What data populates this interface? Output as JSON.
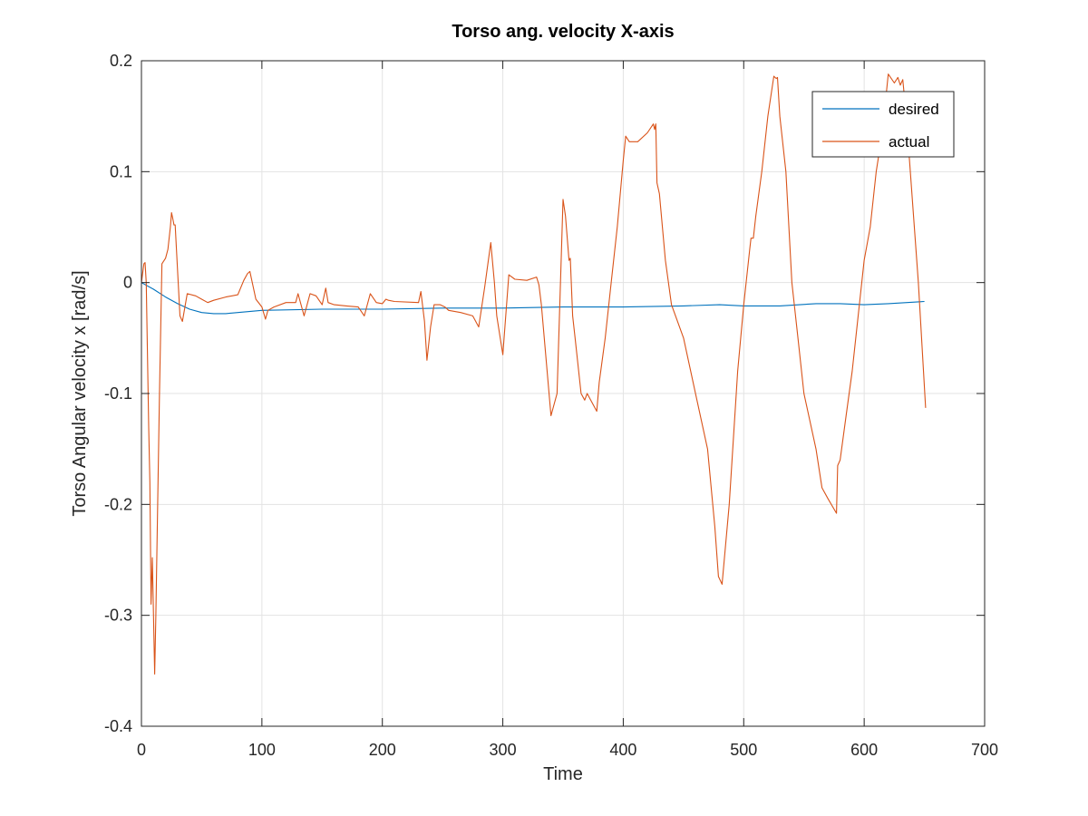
{
  "chart_data": {
    "type": "line",
    "title": "Torso ang. velocity X-axis",
    "xlabel": "Time",
    "ylabel": "Torso Angular velocity x [rad/s]",
    "xlim": [
      0,
      700
    ],
    "ylim": [
      -0.4,
      0.2
    ],
    "xticks": [
      0,
      100,
      200,
      300,
      400,
      500,
      600,
      700
    ],
    "yticks": [
      0.2,
      0.1,
      0,
      -0.1,
      -0.2,
      -0.3,
      -0.4
    ],
    "xtick_labels": [
      "0",
      "100",
      "200",
      "300",
      "400",
      "500",
      "600",
      "700"
    ],
    "ytick_labels": [
      "0.2",
      "0.1",
      "0",
      "-0.1",
      "-0.2",
      "-0.3",
      "-0.4"
    ],
    "grid": true,
    "legend_position": "top-right",
    "series": [
      {
        "name": "desired",
        "color": "#0072BD",
        "x": [
          0,
          10,
          20,
          30,
          40,
          50,
          60,
          70,
          80,
          100,
          150,
          200,
          250,
          300,
          350,
          400,
          450,
          480,
          500,
          530,
          560,
          580,
          600,
          620,
          650
        ],
        "y": [
          0,
          -0.006,
          -0.013,
          -0.019,
          -0.024,
          -0.027,
          -0.028,
          -0.028,
          -0.027,
          -0.025,
          -0.024,
          -0.024,
          -0.023,
          -0.023,
          -0.022,
          -0.022,
          -0.021,
          -0.02,
          -0.021,
          -0.021,
          -0.019,
          -0.019,
          -0.02,
          -0.019,
          -0.017
        ]
      },
      {
        "name": "actual",
        "color": "#D95319",
        "x": [
          0,
          2,
          3,
          4,
          6,
          7,
          8,
          9,
          10,
          11,
          12,
          15,
          17,
          20,
          22,
          24,
          25,
          26,
          27,
          28,
          30,
          32,
          34,
          38,
          45,
          50,
          55,
          60,
          70,
          80,
          85,
          88,
          90,
          95,
          100,
          103,
          105,
          110,
          120,
          128,
          130,
          135,
          140,
          145,
          150,
          153,
          155,
          160,
          170,
          180,
          185,
          190,
          195,
          200,
          203,
          205,
          210,
          230,
          232,
          235,
          237,
          240,
          243,
          248,
          252,
          255,
          265,
          275,
          280,
          285,
          290,
          293,
          295,
          300,
          305,
          310,
          320,
          328,
          330,
          332,
          340,
          345,
          350,
          352,
          355,
          356,
          358,
          360,
          365,
          368,
          370,
          375,
          378,
          380,
          385,
          390,
          395,
          400,
          402,
          405,
          412,
          420,
          425,
          426,
          427,
          428,
          430,
          435,
          440,
          450,
          460,
          470,
          476,
          479,
          482,
          488,
          495,
          500,
          505,
          506,
          508,
          510,
          515,
          520,
          525,
          527,
          528,
          530,
          535,
          540,
          545,
          550,
          560,
          565,
          570,
          577,
          578,
          580,
          585,
          590,
          595,
          600,
          605,
          610,
          615,
          620,
          625,
          628,
          630,
          632,
          635,
          645,
          651
        ],
        "y": [
          0,
          0.017,
          0.018,
          0.0,
          -0.13,
          -0.18,
          -0.29,
          -0.248,
          -0.3,
          -0.353,
          -0.3,
          -0.1,
          0.017,
          0.022,
          0.03,
          0.05,
          0.063,
          0.058,
          0.052,
          0.052,
          0.01,
          -0.03,
          -0.035,
          -0.01,
          -0.012,
          -0.015,
          -0.018,
          -0.016,
          -0.013,
          -0.011,
          0.002,
          0.008,
          0.01,
          -0.015,
          -0.022,
          -0.033,
          -0.025,
          -0.022,
          -0.018,
          -0.018,
          -0.01,
          -0.03,
          -0.01,
          -0.012,
          -0.02,
          -0.005,
          -0.018,
          -0.02,
          -0.021,
          -0.022,
          -0.03,
          -0.01,
          -0.018,
          -0.019,
          -0.015,
          -0.016,
          -0.017,
          -0.018,
          -0.008,
          -0.035,
          -0.07,
          -0.04,
          -0.02,
          -0.02,
          -0.022,
          -0.025,
          -0.027,
          -0.03,
          -0.04,
          -0.004,
          0.036,
          0.0,
          -0.03,
          -0.065,
          0.007,
          0.003,
          0.002,
          0.005,
          -0.002,
          -0.02,
          -0.12,
          -0.1,
          0.075,
          0.06,
          0.02,
          0.022,
          -0.03,
          -0.05,
          -0.1,
          -0.106,
          -0.1,
          -0.11,
          -0.116,
          -0.09,
          -0.05,
          0.0,
          0.05,
          0.11,
          0.132,
          0.127,
          0.127,
          0.135,
          0.143,
          0.138,
          0.143,
          0.09,
          0.08,
          0.02,
          -0.02,
          -0.05,
          -0.1,
          -0.15,
          -0.22,
          -0.265,
          -0.272,
          -0.2,
          -0.08,
          -0.02,
          0.03,
          0.04,
          0.04,
          0.06,
          0.1,
          0.15,
          0.186,
          0.184,
          0.185,
          0.15,
          0.1,
          0.0,
          -0.05,
          -0.1,
          -0.15,
          -0.185,
          -0.195,
          -0.208,
          -0.165,
          -0.16,
          -0.12,
          -0.08,
          -0.03,
          0.02,
          0.05,
          0.1,
          0.135,
          0.188,
          0.18,
          0.185,
          0.178,
          0.183,
          0.15,
          0.0,
          -0.113
        ]
      }
    ]
  }
}
